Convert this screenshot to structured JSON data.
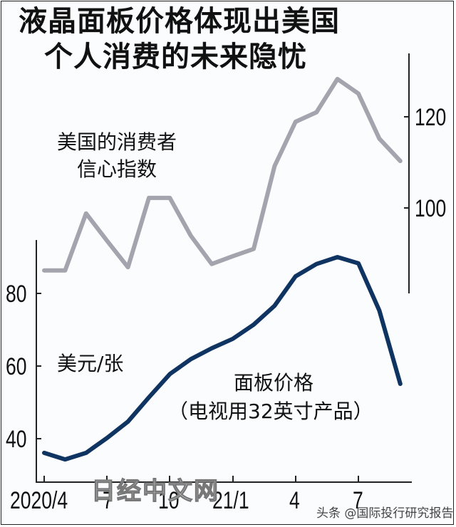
{
  "title": {
    "line1": "液晶面板价格体现出美国",
    "line2": "个人消费的未来隐忧"
  },
  "labels": {
    "confidence_line1": "美国的消费者",
    "confidence_line2": "信心指数",
    "unit": "美元/张",
    "price_line1": "面板价格",
    "price_line2": "（电视用32英寸产品）"
  },
  "axes": {
    "left_ticks": [
      "80",
      "60",
      "40"
    ],
    "right_ticks": [
      "120",
      "100"
    ],
    "x_ticks": [
      "2020/4",
      "7",
      "10",
      "21/1",
      "4",
      "7"
    ]
  },
  "watermark": "日经中文网",
  "credit": "头条 @国际投行研究报告",
  "colors": {
    "confidence": "#a3a4ad",
    "price": "#0f3461",
    "axis": "#222222"
  },
  "chart_data": {
    "type": "line",
    "title": "液晶面板价格体现出美国个人消费的未来隐忧",
    "x": [
      "2020/4",
      "2020/5",
      "2020/6",
      "2020/7",
      "2020/8",
      "2020/9",
      "2020/10",
      "2020/11",
      "2020/12",
      "2021/1",
      "2021/2",
      "2021/3",
      "2021/4",
      "2021/5",
      "2021/6",
      "2021/7",
      "2021/8",
      "2021/9"
    ],
    "x_tick_labels": [
      "2020/4",
      "7",
      "10",
      "21/1",
      "4",
      "7"
    ],
    "series": [
      {
        "name": "美国的消费者信心指数",
        "axis": "right",
        "color": "#a3a4ad",
        "values": [
          86.3,
          86.3,
          98.8,
          92.8,
          87.0,
          102.2,
          102.2,
          93.9,
          87.7,
          89.4,
          91.0,
          109.2,
          118.9,
          121.0,
          128.3,
          125.1,
          115.2,
          110.3
        ]
      },
      {
        "name": "面板价格（电视用32英寸产品）",
        "axis": "left",
        "unit": "美元/张",
        "color": "#0f3461",
        "values": [
          36.1,
          34.3,
          36.1,
          40.2,
          44.7,
          51.4,
          57.8,
          61.9,
          64.9,
          67.5,
          71.4,
          76.6,
          84.7,
          88.1,
          90.0,
          88.3,
          75.3,
          55.1
        ]
      }
    ],
    "ylabel_left": "美元/张",
    "ylim_left": [
      34,
      90
    ],
    "yticks_left": [
      40,
      60,
      80
    ],
    "ylim_right": [
      80,
      130
    ],
    "yticks_right": [
      100,
      120
    ],
    "grid": false,
    "legend": "inline labels"
  }
}
